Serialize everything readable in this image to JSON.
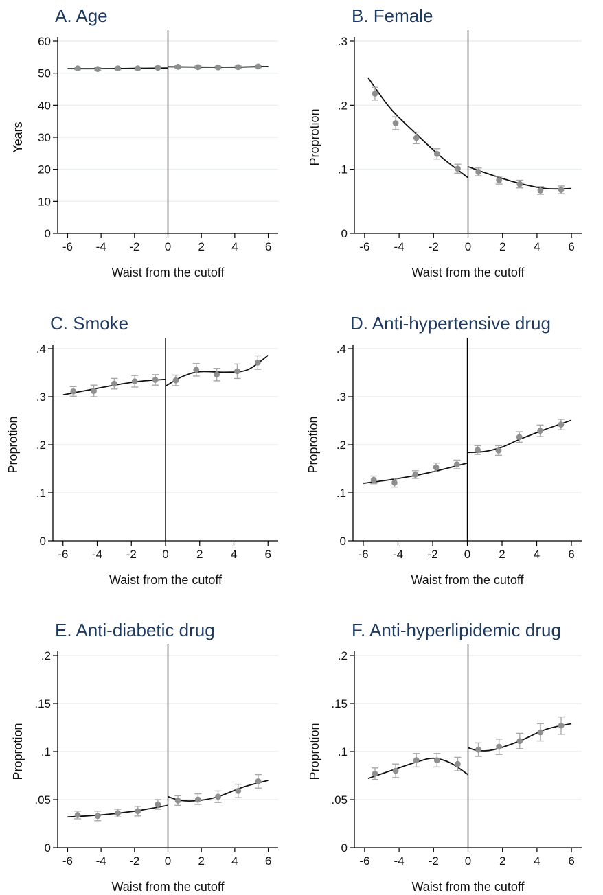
{
  "chart_data": [
    {
      "type": "scatter",
      "title": "A. Age",
      "xlabel": "Waist from the cutoff",
      "ylabel": "Years",
      "xlim": [
        -6,
        6
      ],
      "ylim": [
        0,
        60
      ],
      "xticks": [
        "-6",
        "-4",
        "-2",
        "0",
        "2",
        "4",
        "6"
      ],
      "yticks": [
        "0",
        "10",
        "20",
        "30",
        "40",
        "50",
        "60"
      ],
      "cutoff": 0,
      "points": [
        {
          "x": -5.4,
          "y": 51.5,
          "lo": 51.1,
          "hi": 51.9
        },
        {
          "x": -4.2,
          "y": 51.3,
          "lo": 50.9,
          "hi": 51.7
        },
        {
          "x": -3.0,
          "y": 51.5,
          "lo": 51.1,
          "hi": 51.9
        },
        {
          "x": -1.8,
          "y": 51.5,
          "lo": 51.1,
          "hi": 51.9
        },
        {
          "x": -0.6,
          "y": 51.7,
          "lo": 51.3,
          "hi": 52.1
        },
        {
          "x": 0.6,
          "y": 52.0,
          "lo": 51.6,
          "hi": 52.4
        },
        {
          "x": 1.8,
          "y": 51.9,
          "lo": 51.5,
          "hi": 52.3
        },
        {
          "x": 3.0,
          "y": 51.8,
          "lo": 51.4,
          "hi": 52.2
        },
        {
          "x": 4.2,
          "y": 51.9,
          "lo": 51.5,
          "hi": 52.3
        },
        {
          "x": 5.4,
          "y": 52.1,
          "lo": 51.7,
          "hi": 52.5
        }
      ],
      "fit_left": [
        [
          -6,
          51.4
        ],
        [
          -4,
          51.4
        ],
        [
          -2,
          51.5
        ],
        [
          0,
          51.6
        ]
      ],
      "fit_right": [
        [
          0,
          52.0
        ],
        [
          2,
          51.9
        ],
        [
          4,
          51.9
        ],
        [
          6,
          52.1
        ]
      ],
      "grid": true
    },
    {
      "type": "scatter",
      "title": "B. Female",
      "xlabel": "Waist from the cutoff",
      "ylabel": "Proprotion",
      "xlim": [
        -6,
        6
      ],
      "ylim": [
        0,
        0.3
      ],
      "xticks": [
        "-6",
        "-4",
        "-2",
        "0",
        "2",
        "4",
        "6"
      ],
      "yticks": [
        "0",
        ".1",
        ".2",
        ".3"
      ],
      "cutoff": 0,
      "points": [
        {
          "x": -5.4,
          "y": 0.218,
          "lo": 0.208,
          "hi": 0.228
        },
        {
          "x": -4.2,
          "y": 0.172,
          "lo": 0.162,
          "hi": 0.182
        },
        {
          "x": -3.0,
          "y": 0.149,
          "lo": 0.14,
          "hi": 0.158
        },
        {
          "x": -1.8,
          "y": 0.124,
          "lo": 0.116,
          "hi": 0.132
        },
        {
          "x": -0.6,
          "y": 0.101,
          "lo": 0.094,
          "hi": 0.108
        },
        {
          "x": 0.6,
          "y": 0.096,
          "lo": 0.09,
          "hi": 0.102
        },
        {
          "x": 1.8,
          "y": 0.083,
          "lo": 0.077,
          "hi": 0.089
        },
        {
          "x": 3.0,
          "y": 0.077,
          "lo": 0.071,
          "hi": 0.083
        },
        {
          "x": 4.2,
          "y": 0.067,
          "lo": 0.061,
          "hi": 0.073
        },
        {
          "x": 5.4,
          "y": 0.068,
          "lo": 0.062,
          "hi": 0.074
        }
      ],
      "fit_left": [
        [
          -5.8,
          0.243
        ],
        [
          -4.5,
          0.195
        ],
        [
          -3,
          0.155
        ],
        [
          -1.5,
          0.118
        ],
        [
          0,
          0.087
        ]
      ],
      "fit_right": [
        [
          0,
          0.104
        ],
        [
          1.5,
          0.09
        ],
        [
          3,
          0.078
        ],
        [
          4.5,
          0.07
        ],
        [
          6,
          0.07
        ]
      ],
      "grid": true
    },
    {
      "type": "scatter",
      "title": "C. Smoke",
      "xlabel": "Waist from the cutoff",
      "ylabel": "Proprotion",
      "xlim": [
        -6,
        6
      ],
      "ylim": [
        0,
        0.4
      ],
      "xticks": [
        "-6",
        "-4",
        "-2",
        "0",
        "2",
        "4",
        "6"
      ],
      "yticks": [
        "0",
        ".1",
        ".2",
        ".3",
        ".4"
      ],
      "cutoff": 0,
      "points": [
        {
          "x": -5.4,
          "y": 0.311,
          "lo": 0.301,
          "hi": 0.321
        },
        {
          "x": -4.2,
          "y": 0.312,
          "lo": 0.3,
          "hi": 0.324
        },
        {
          "x": -3.0,
          "y": 0.327,
          "lo": 0.316,
          "hi": 0.338
        },
        {
          "x": -1.8,
          "y": 0.332,
          "lo": 0.32,
          "hi": 0.344
        },
        {
          "x": -0.6,
          "y": 0.335,
          "lo": 0.324,
          "hi": 0.346
        },
        {
          "x": 0.6,
          "y": 0.334,
          "lo": 0.323,
          "hi": 0.345
        },
        {
          "x": 1.8,
          "y": 0.356,
          "lo": 0.343,
          "hi": 0.369
        },
        {
          "x": 3.0,
          "y": 0.346,
          "lo": 0.333,
          "hi": 0.359
        },
        {
          "x": 4.2,
          "y": 0.353,
          "lo": 0.338,
          "hi": 0.368
        },
        {
          "x": 5.4,
          "y": 0.371,
          "lo": 0.357,
          "hi": 0.385
        }
      ],
      "fit_left": [
        [
          -6,
          0.304
        ],
        [
          -4.5,
          0.314
        ],
        [
          -3,
          0.324
        ],
        [
          -1.5,
          0.332
        ],
        [
          0,
          0.336
        ]
      ],
      "fit_right": [
        [
          0,
          0.322
        ],
        [
          1,
          0.342
        ],
        [
          2,
          0.352
        ],
        [
          3.5,
          0.351
        ],
        [
          4.8,
          0.356
        ],
        [
          6,
          0.386
        ]
      ],
      "grid": true
    },
    {
      "type": "scatter",
      "title": "D. Anti-hypertensive drug",
      "xlabel": "Waist from the cutoff",
      "ylabel": "Proprotion",
      "xlim": [
        -6,
        6
      ],
      "ylim": [
        0,
        0.4
      ],
      "xticks": [
        "-6",
        "-4",
        "-2",
        "0",
        "2",
        "4",
        "6"
      ],
      "yticks": [
        "0",
        ".1",
        ".2",
        ".3",
        ".4"
      ],
      "cutoff": 0,
      "points": [
        {
          "x": -5.4,
          "y": 0.127,
          "lo": 0.119,
          "hi": 0.135
        },
        {
          "x": -4.2,
          "y": 0.121,
          "lo": 0.112,
          "hi": 0.13
        },
        {
          "x": -3.0,
          "y": 0.138,
          "lo": 0.13,
          "hi": 0.146
        },
        {
          "x": -1.8,
          "y": 0.153,
          "lo": 0.144,
          "hi": 0.162
        },
        {
          "x": -0.6,
          "y": 0.159,
          "lo": 0.15,
          "hi": 0.168
        },
        {
          "x": 0.6,
          "y": 0.189,
          "lo": 0.18,
          "hi": 0.198
        },
        {
          "x": 1.8,
          "y": 0.188,
          "lo": 0.178,
          "hi": 0.198
        },
        {
          "x": 3.0,
          "y": 0.216,
          "lo": 0.205,
          "hi": 0.227
        },
        {
          "x": 4.2,
          "y": 0.229,
          "lo": 0.217,
          "hi": 0.241
        },
        {
          "x": 5.4,
          "y": 0.242,
          "lo": 0.231,
          "hi": 0.253
        }
      ],
      "fit_left": [
        [
          -6,
          0.12
        ],
        [
          -4.5,
          0.127
        ],
        [
          -3,
          0.136
        ],
        [
          -1.5,
          0.148
        ],
        [
          0,
          0.162
        ]
      ],
      "fit_right": [
        [
          0,
          0.184
        ],
        [
          1,
          0.186
        ],
        [
          2,
          0.195
        ],
        [
          3,
          0.211
        ],
        [
          4.5,
          0.232
        ],
        [
          6,
          0.251
        ]
      ],
      "grid": true
    },
    {
      "type": "scatter",
      "title": "E. Anti-diabetic drug",
      "xlabel": "Waist from the cutoff",
      "ylabel": "Proprotion",
      "xlim": [
        -6,
        6
      ],
      "ylim": [
        0,
        0.2
      ],
      "xticks": [
        "-6",
        "-4",
        "-2",
        "0",
        "2",
        "4",
        "6"
      ],
      "yticks": [
        "0",
        ".05",
        ".1",
        ".15",
        ".2"
      ],
      "cutoff": 0,
      "points": [
        {
          "x": -5.4,
          "y": 0.034,
          "lo": 0.03,
          "hi": 0.038
        },
        {
          "x": -4.2,
          "y": 0.033,
          "lo": 0.028,
          "hi": 0.038
        },
        {
          "x": -3.0,
          "y": 0.036,
          "lo": 0.032,
          "hi": 0.04
        },
        {
          "x": -1.8,
          "y": 0.038,
          "lo": 0.033,
          "hi": 0.043
        },
        {
          "x": -0.6,
          "y": 0.045,
          "lo": 0.04,
          "hi": 0.05
        },
        {
          "x": 0.6,
          "y": 0.049,
          "lo": 0.044,
          "hi": 0.054
        },
        {
          "x": 1.8,
          "y": 0.05,
          "lo": 0.045,
          "hi": 0.056
        },
        {
          "x": 3.0,
          "y": 0.053,
          "lo": 0.047,
          "hi": 0.059
        },
        {
          "x": 4.2,
          "y": 0.059,
          "lo": 0.052,
          "hi": 0.066
        },
        {
          "x": 5.4,
          "y": 0.069,
          "lo": 0.062,
          "hi": 0.076
        }
      ],
      "fit_left": [
        [
          -6,
          0.032
        ],
        [
          -4,
          0.034
        ],
        [
          -2,
          0.038
        ],
        [
          0,
          0.044
        ]
      ],
      "fit_right": [
        [
          0,
          0.053
        ],
        [
          0.8,
          0.049
        ],
        [
          1.8,
          0.049
        ],
        [
          3,
          0.053
        ],
        [
          4.5,
          0.063
        ],
        [
          6,
          0.07
        ]
      ],
      "grid": true
    },
    {
      "type": "scatter",
      "title": "F. Anti-hyperlipidemic drug",
      "xlabel": "Waist from the cutoff",
      "ylabel": "Proprotion",
      "xlim": [
        -6,
        6
      ],
      "ylim": [
        0,
        0.2
      ],
      "xticks": [
        "-6",
        "-4",
        "-2",
        "0",
        "2",
        "4",
        "6"
      ],
      "yticks": [
        "0",
        ".05",
        ".1",
        ".15",
        ".2"
      ],
      "cutoff": 0,
      "points": [
        {
          "x": -5.4,
          "y": 0.077,
          "lo": 0.071,
          "hi": 0.083
        },
        {
          "x": -4.2,
          "y": 0.08,
          "lo": 0.073,
          "hi": 0.087
        },
        {
          "x": -3.0,
          "y": 0.091,
          "lo": 0.084,
          "hi": 0.098
        },
        {
          "x": -1.8,
          "y": 0.091,
          "lo": 0.084,
          "hi": 0.098
        },
        {
          "x": -0.6,
          "y": 0.087,
          "lo": 0.08,
          "hi": 0.094
        },
        {
          "x": 0.6,
          "y": 0.102,
          "lo": 0.095,
          "hi": 0.109
        },
        {
          "x": 1.8,
          "y": 0.105,
          "lo": 0.097,
          "hi": 0.113
        },
        {
          "x": 3.0,
          "y": 0.111,
          "lo": 0.103,
          "hi": 0.119
        },
        {
          "x": 4.2,
          "y": 0.12,
          "lo": 0.111,
          "hi": 0.129
        },
        {
          "x": 5.4,
          "y": 0.127,
          "lo": 0.118,
          "hi": 0.136
        }
      ],
      "fit_left": [
        [
          -5.8,
          0.072
        ],
        [
          -4.5,
          0.08
        ],
        [
          -3,
          0.089
        ],
        [
          -2,
          0.093
        ],
        [
          -1,
          0.088
        ],
        [
          0,
          0.076
        ]
      ],
      "fit_right": [
        [
          0,
          0.104
        ],
        [
          0.6,
          0.101
        ],
        [
          1.5,
          0.102
        ],
        [
          3,
          0.111
        ],
        [
          4.5,
          0.123
        ],
        [
          6,
          0.129
        ]
      ],
      "grid": true
    }
  ]
}
